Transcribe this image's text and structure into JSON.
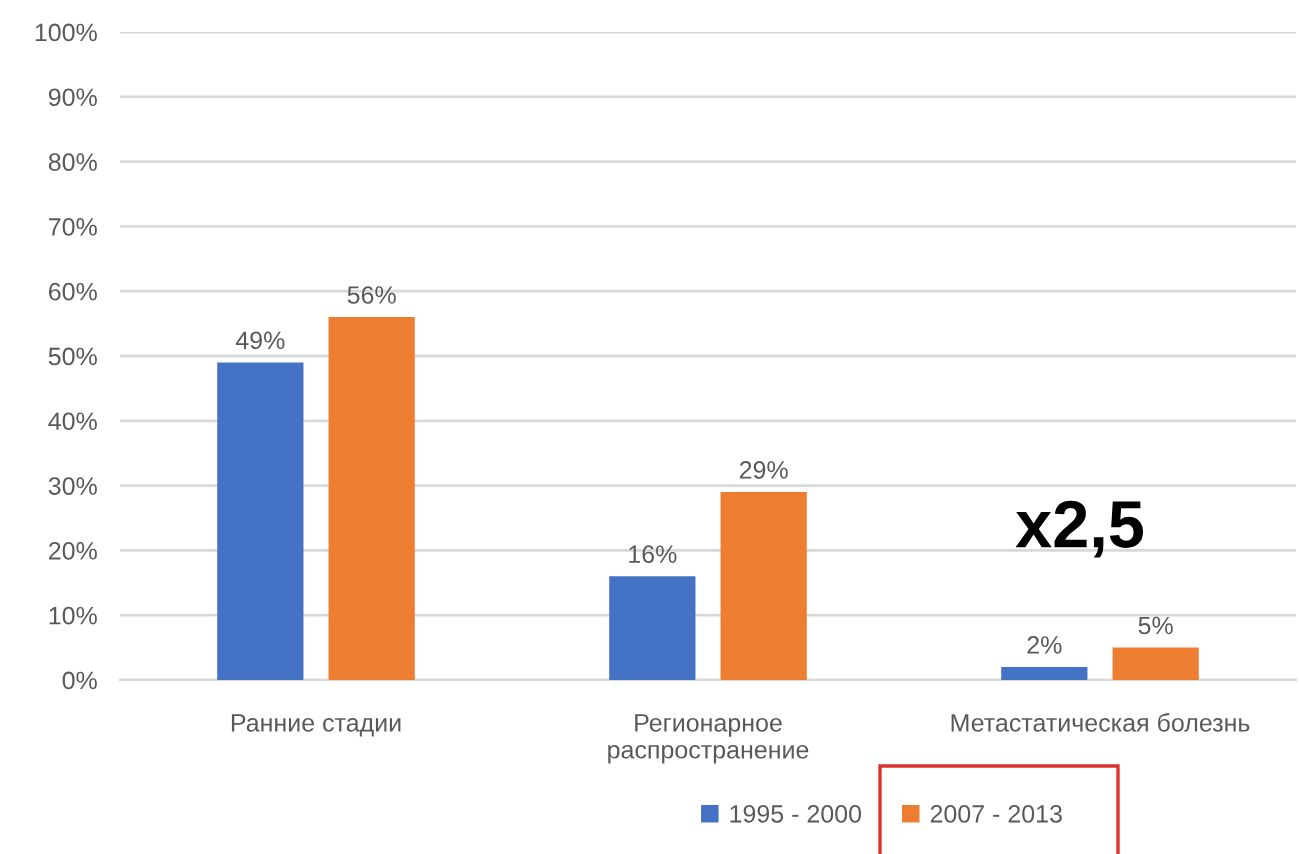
{
  "chart_data": {
    "type": "bar",
    "categories": [
      "Ранние стадии",
      "Регионарное\nраспространение",
      "Метастатическая болезнь"
    ],
    "series": [
      {
        "name": "1995 - 2000",
        "color": "#4472c4",
        "values": [
          49,
          16,
          2
        ],
        "value_labels": [
          "49%",
          "16%",
          "2%"
        ]
      },
      {
        "name": "2007 - 2013",
        "color": "#ed7d31",
        "values": [
          56,
          29,
          5
        ],
        "value_labels": [
          "56%",
          "29%",
          "5%"
        ]
      }
    ],
    "ylim": [
      0,
      100
    ],
    "yticks": [
      {
        "value": 0,
        "label": "0%"
      },
      {
        "value": 10,
        "label": "10%"
      },
      {
        "value": 20,
        "label": "20%"
      },
      {
        "value": 30,
        "label": "30%"
      },
      {
        "value": 40,
        "label": "40%"
      },
      {
        "value": 50,
        "label": "50%"
      },
      {
        "value": 60,
        "label": "60%"
      },
      {
        "value": 70,
        "label": "70%"
      },
      {
        "value": 80,
        "label": "80%"
      },
      {
        "value": 90,
        "label": "90%"
      },
      {
        "value": 100,
        "label": "100%"
      }
    ],
    "grid": "y",
    "legend": "bottom",
    "annotations": [
      "x2,5"
    ]
  }
}
